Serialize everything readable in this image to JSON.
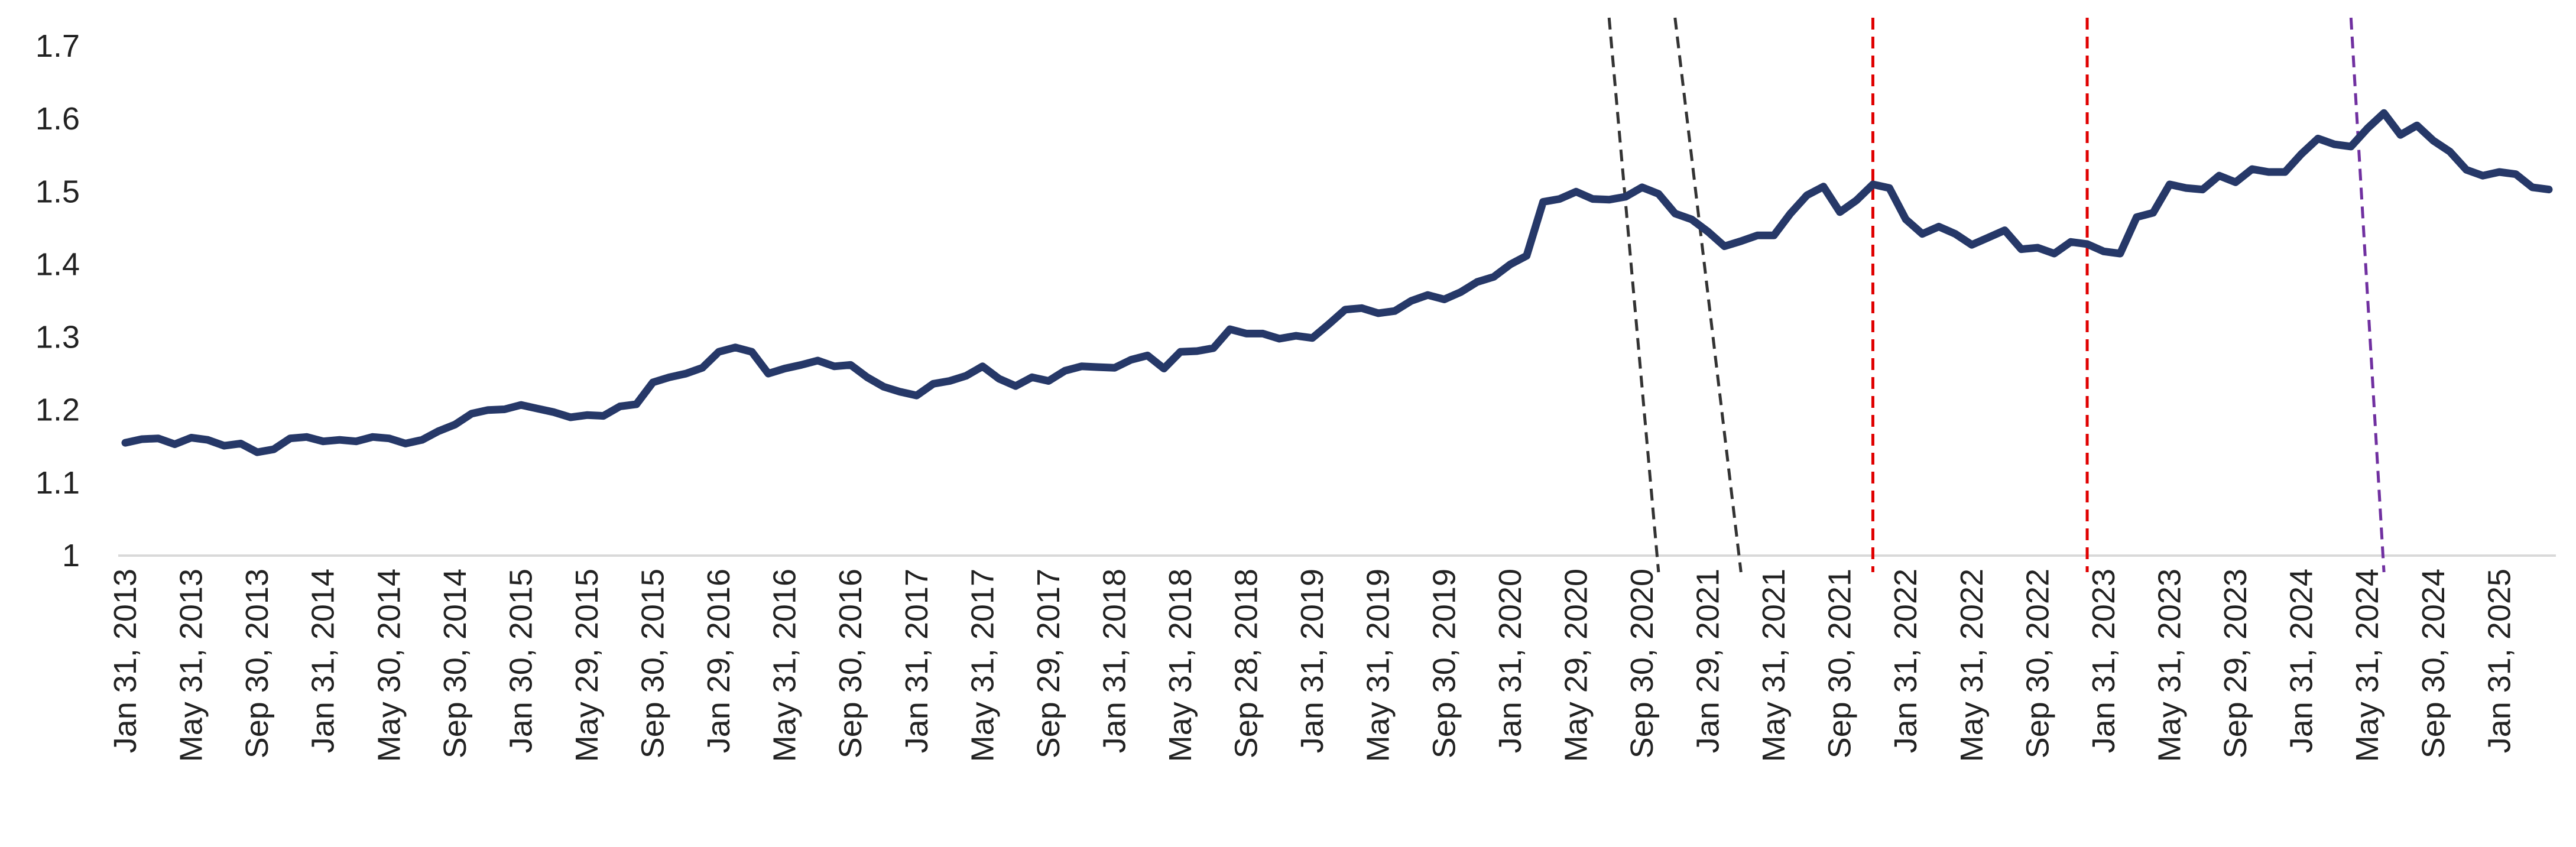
{
  "chart_data": {
    "type": "line",
    "title": "",
    "xlabel": "",
    "ylabel": "",
    "ylim": [
      1,
      1.7
    ],
    "yticks": [
      "1",
      "1.1",
      "1.2",
      "1.3",
      "1.4",
      "1.5",
      "1.6",
      "1.7"
    ],
    "grid": false,
    "x_tick_labels": [
      "Jan 31, 2013",
      "May 31, 2013",
      "Sep 30, 2013",
      "Jan 31, 2014",
      "May 30, 2014",
      "Sep 30, 2014",
      "Jan 30, 2015",
      "May 29, 2015",
      "Sep 30, 2015",
      "Jan 29, 2016",
      "May 31, 2016",
      "Sep 30, 2016",
      "Jan 31, 2017",
      "May 31, 2017",
      "Sep 29, 2017",
      "Jan 31, 2018",
      "May 31, 2018",
      "Sep 28, 2018",
      "Jan 31, 2019",
      "May 31, 2019",
      "Sep 30, 2019",
      "Jan 31, 2020",
      "May 29, 2020",
      "Sep 30, 2020",
      "Jan 29, 2021",
      "May 31, 2021",
      "Sep 30, 2021",
      "Jan 31, 2022",
      "May 31, 2022",
      "Sep 30, 2022",
      "Jan 31, 2023",
      "May 31, 2023",
      "Sep 29, 2023",
      "Jan 31, 2024",
      "May 31, 2024",
      "Sep 30, 2024",
      "Jan 31, 2025"
    ],
    "series": [
      {
        "color": "#263868",
        "start": "Jan 2013",
        "frequency": "monthly",
        "values": [
          1.155,
          1.16,
          1.161,
          1.153,
          1.162,
          1.159,
          1.151,
          1.154,
          1.142,
          1.146,
          1.161,
          1.163,
          1.157,
          1.159,
          1.157,
          1.163,
          1.161,
          1.154,
          1.159,
          1.171,
          1.18,
          1.195,
          1.2,
          1.201,
          1.207,
          1.202,
          1.197,
          1.19,
          1.193,
          1.192,
          1.205,
          1.208,
          1.238,
          1.245,
          1.25,
          1.258,
          1.28,
          1.286,
          1.28,
          1.25,
          1.257,
          1.262,
          1.268,
          1.26,
          1.262,
          1.245,
          1.232,
          1.225,
          1.22,
          1.236,
          1.24,
          1.247,
          1.26,
          1.243,
          1.233,
          1.245,
          1.24,
          1.254,
          1.26,
          1.259,
          1.258,
          1.269,
          1.275,
          1.257,
          1.28,
          1.281,
          1.285,
          1.311,
          1.305,
          1.305,
          1.298,
          1.302,
          1.299,
          1.318,
          1.338,
          1.34,
          1.333,
          1.336,
          1.35,
          1.358,
          1.352,
          1.362,
          1.376,
          1.383,
          1.4,
          1.412,
          1.486,
          1.49,
          1.5,
          1.49,
          1.489,
          1.493,
          1.506,
          1.497,
          1.47,
          1.462,
          1.445,
          1.425,
          1.432,
          1.44,
          1.44,
          1.47,
          1.495,
          1.507,
          1.472,
          1.488,
          1.51,
          1.505,
          1.462,
          1.442,
          1.452,
          1.442,
          1.427,
          1.437,
          1.447,
          1.421,
          1.423,
          1.415,
          1.431,
          1.428,
          1.418,
          1.415,
          1.465,
          1.471,
          1.51,
          1.505,
          1.503,
          1.522,
          1.513,
          1.531,
          1.527,
          1.527,
          1.552,
          1.573,
          1.565,
          1.562,
          1.587,
          1.608,
          1.578,
          1.591,
          1.57,
          1.555,
          1.53,
          1.522,
          1.527,
          1.524,
          1.506,
          1.503
        ]
      }
    ],
    "vertical_markers": [
      {
        "color": "#333333",
        "top": "Jul 2020",
        "bottom": "Oct 2020"
      },
      {
        "color": "#333333",
        "top": "Nov 2020",
        "bottom": "Mar 2021"
      },
      {
        "color": "#e00000",
        "top": "Nov 2021",
        "bottom": "Nov 2021"
      },
      {
        "color": "#e00000",
        "top": "Dec 2022",
        "bottom": "Dec 2022"
      },
      {
        "color": "#7030a0",
        "top": "Apr 2024",
        "bottom": "Jun 2024"
      }
    ]
  }
}
